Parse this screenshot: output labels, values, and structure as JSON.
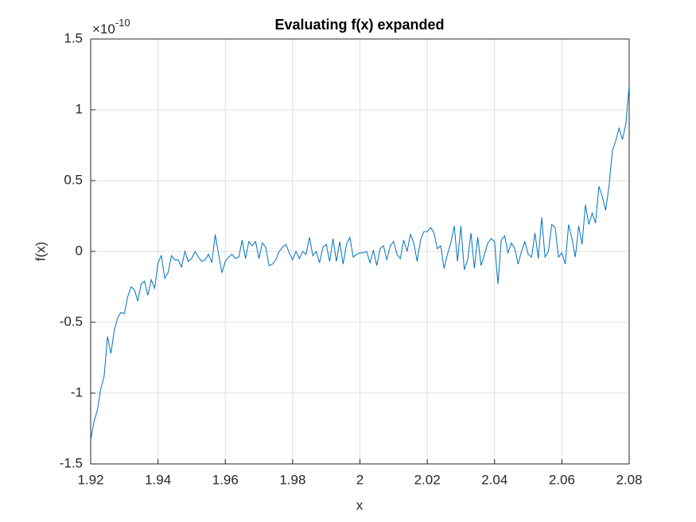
{
  "chart_data": {
    "type": "line",
    "title": "Evaluating f(x) expanded",
    "xlabel": "x",
    "ylabel": "f(x)",
    "y_multiplier": {
      "base": "×10",
      "exponent": "-10"
    },
    "xlim": [
      1.92,
      2.08
    ],
    "xticks": [
      1.92,
      1.94,
      1.96,
      1.98,
      2,
      2.02,
      2.04,
      2.06,
      2.08
    ],
    "ylim": [
      -1.5,
      1.5
    ],
    "yticks": [
      -1.5,
      -1,
      -0.5,
      0,
      0.5,
      1,
      1.5
    ],
    "grid": true,
    "x": [
      1.92,
      1.921,
      1.922,
      1.923,
      1.924,
      1.925,
      1.926,
      1.927,
      1.928,
      1.929,
      1.93,
      1.931,
      1.932,
      1.933,
      1.934,
      1.935,
      1.936,
      1.937,
      1.938,
      1.939,
      1.94,
      1.941,
      1.942,
      1.943,
      1.944,
      1.945,
      1.946,
      1.947,
      1.948,
      1.949,
      1.95,
      1.951,
      1.952,
      1.953,
      1.954,
      1.955,
      1.956,
      1.957,
      1.958,
      1.959,
      1.96,
      1.961,
      1.962,
      1.963,
      1.964,
      1.965,
      1.966,
      1.967,
      1.968,
      1.969,
      1.97,
      1.971,
      1.972,
      1.973,
      1.974,
      1.975,
      1.976,
      1.977,
      1.978,
      1.979,
      1.98,
      1.981,
      1.982,
      1.983,
      1.984,
      1.985,
      1.986,
      1.987,
      1.988,
      1.989,
      1.99,
      1.991,
      1.992,
      1.993,
      1.994,
      1.995,
      1.996,
      1.997,
      1.998,
      1.999,
      2.0,
      2.001,
      2.002,
      2.003,
      2.004,
      2.005,
      2.006,
      2.007,
      2.008,
      2.009,
      2.01,
      2.011,
      2.012,
      2.013,
      2.014,
      2.015,
      2.016,
      2.017,
      2.018,
      2.019,
      2.02,
      2.021,
      2.022,
      2.023,
      2.024,
      2.025,
      2.026,
      2.027,
      2.028,
      2.029,
      2.03,
      2.031,
      2.032,
      2.033,
      2.034,
      2.035,
      2.036,
      2.037,
      2.038,
      2.039,
      2.04,
      2.041,
      2.042,
      2.043,
      2.044,
      2.045,
      2.046,
      2.047,
      2.048,
      2.049,
      2.05,
      2.051,
      2.052,
      2.053,
      2.054,
      2.055,
      2.056,
      2.057,
      2.058,
      2.059,
      2.06,
      2.061,
      2.062,
      2.063,
      2.064,
      2.065,
      2.066,
      2.067,
      2.068,
      2.069,
      2.07,
      2.071,
      2.072,
      2.073,
      2.074,
      2.075,
      2.076,
      2.077,
      2.078,
      2.079,
      2.08
    ],
    "series": [
      {
        "color": "#0072bd",
        "values": [
          -1.33,
          -1.2,
          -1.12,
          -0.97,
          -0.88,
          -0.6,
          -0.72,
          -0.56,
          -0.47,
          -0.43,
          -0.44,
          -0.32,
          -0.25,
          -0.27,
          -0.35,
          -0.23,
          -0.21,
          -0.31,
          -0.2,
          -0.26,
          -0.08,
          -0.03,
          -0.19,
          -0.15,
          -0.03,
          -0.06,
          -0.06,
          -0.11,
          0.0,
          -0.07,
          -0.05,
          0.0,
          -0.04,
          -0.07,
          -0.06,
          -0.02,
          -0.08,
          0.12,
          -0.02,
          -0.15,
          -0.07,
          -0.04,
          -0.02,
          -0.05,
          -0.04,
          0.08,
          -0.05,
          0.07,
          0.04,
          0.07,
          -0.05,
          0.06,
          0.03,
          -0.1,
          -0.09,
          -0.06,
          0.0,
          0.03,
          0.05,
          -0.01,
          -0.06,
          0.0,
          -0.05,
          0.0,
          -0.02,
          0.1,
          -0.03,
          0.0,
          -0.08,
          0.03,
          0.05,
          -0.07,
          0.09,
          -0.07,
          0.07,
          -0.09,
          0.05,
          0.1,
          -0.04,
          -0.02,
          -0.01,
          -0.01,
          0.0,
          -0.08,
          0.01,
          -0.1,
          0.02,
          0.04,
          -0.06,
          0.04,
          0.07,
          -0.02,
          -0.05,
          0.08,
          0.0,
          0.12,
          0.06,
          -0.07,
          0.08,
          0.14,
          0.14,
          0.17,
          0.13,
          0.02,
          0.04,
          -0.12,
          -0.02,
          0.06,
          0.18,
          -0.07,
          0.18,
          -0.13,
          -0.06,
          0.13,
          -0.12,
          0.1,
          -0.1,
          -0.02,
          0.06,
          0.09,
          0.07,
          -0.23,
          0.08,
          0.11,
          -0.01,
          0.06,
          0.02,
          -0.09,
          0.0,
          0.07,
          -0.02,
          -0.04,
          0.13,
          -0.05,
          0.24,
          -0.04,
          0.0,
          0.19,
          0.17,
          -0.04,
          -0.01,
          -0.09,
          0.19,
          0.09,
          -0.04,
          0.18,
          0.05,
          0.33,
          0.19,
          0.27,
          0.2,
          0.46,
          0.39,
          0.29,
          0.46,
          0.71,
          0.78,
          0.87,
          0.79,
          0.9,
          1.17
        ]
      }
    ]
  }
}
